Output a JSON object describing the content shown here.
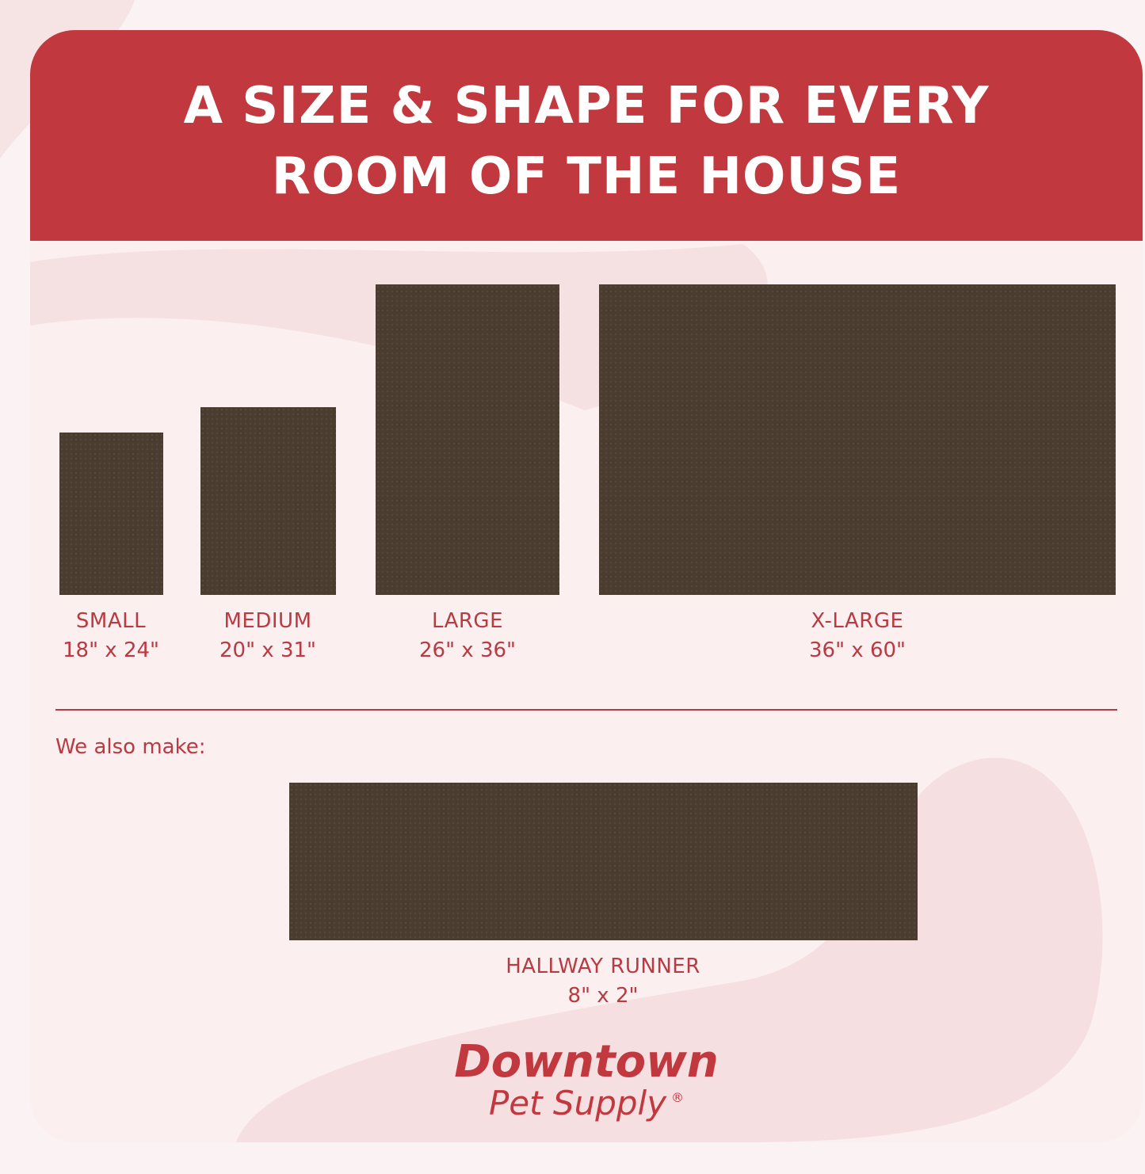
{
  "title_line1": "A SIZE & SHAPE FOR EVERY",
  "title_line2": "ROOM OF THE HOUSE",
  "colors": {
    "brand_red": "#c1393f",
    "mat": "#4a3d30",
    "background": "#fbefef"
  },
  "sizes": [
    {
      "name": "SMALL",
      "dims": "18\" x 24\""
    },
    {
      "name": "MEDIUM",
      "dims": "20\" x 31\""
    },
    {
      "name": "LARGE",
      "dims": "26\" x 36\""
    },
    {
      "name": "X-LARGE",
      "dims": "36\" x 60\""
    }
  ],
  "also_make": "We also make:",
  "runner": {
    "name": "HALLWAY RUNNER",
    "dims": "8\" x 2\""
  },
  "logo": {
    "line1": "Downtown",
    "line2": "Pet Supply",
    "mark": "®"
  }
}
